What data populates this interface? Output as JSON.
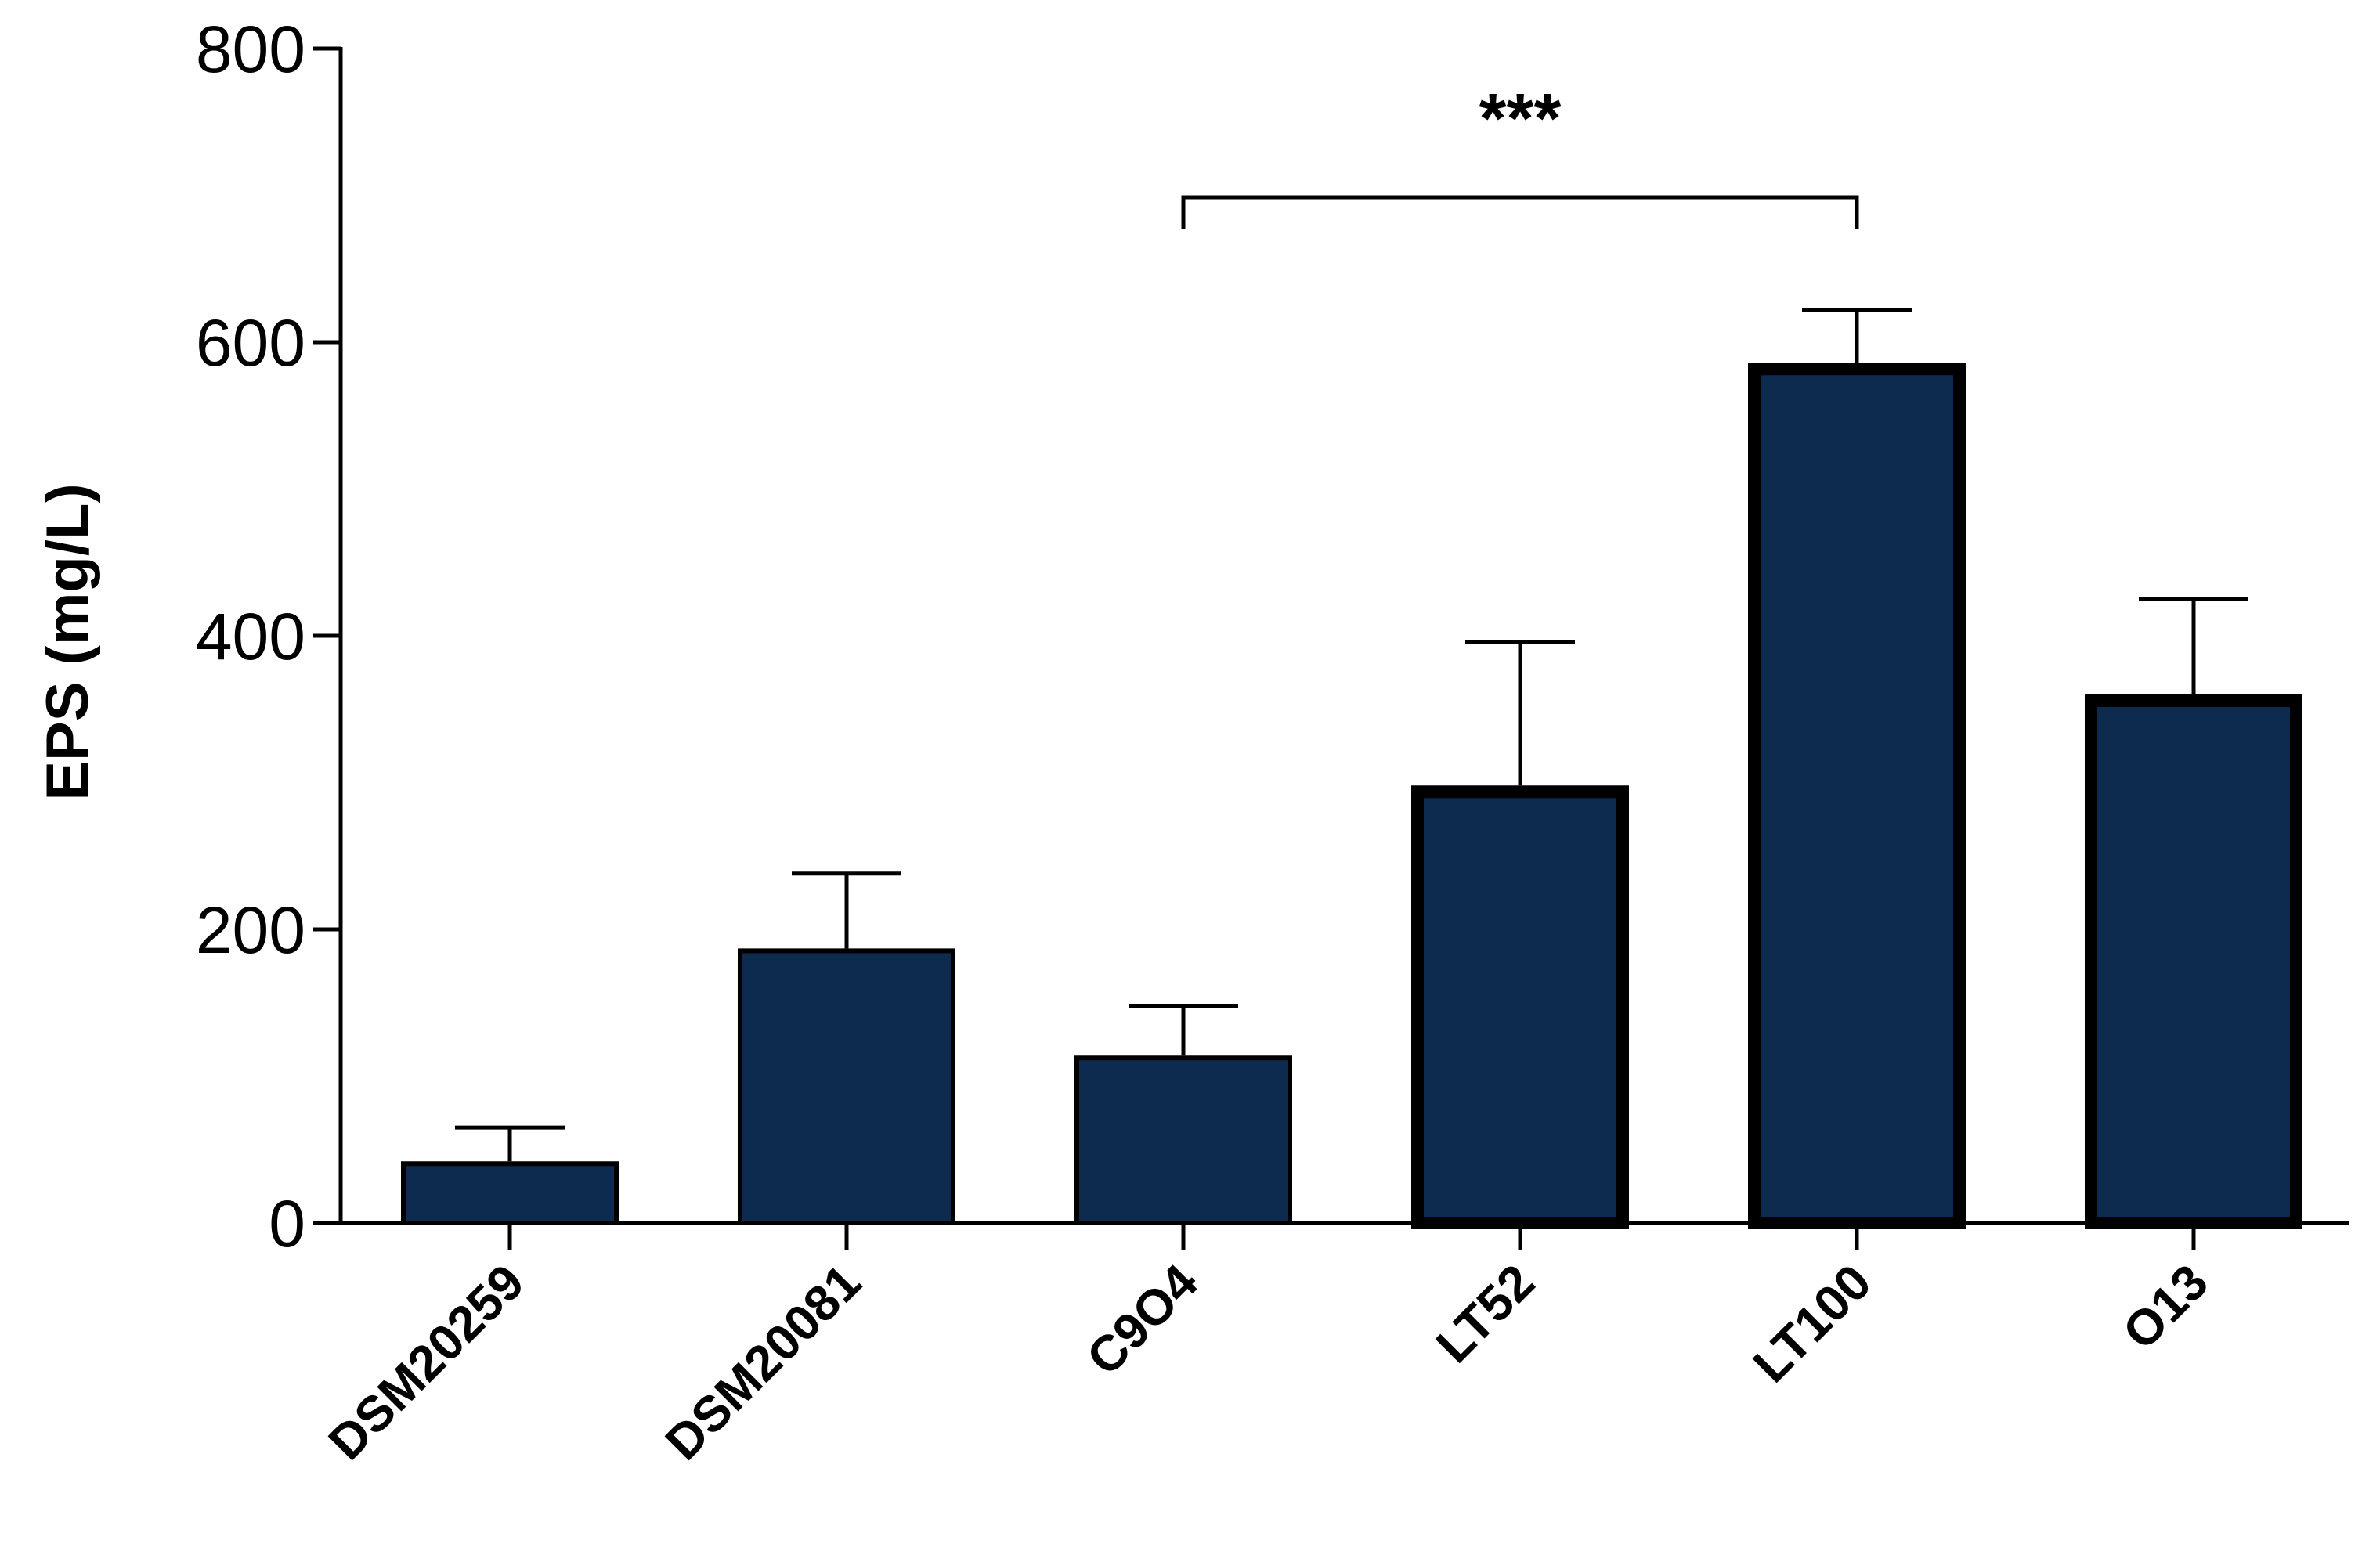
{
  "chart_data": {
    "type": "bar",
    "title": "",
    "xlabel": "",
    "ylabel": "EPS (mg/L)",
    "ylim": [
      0,
      800
    ],
    "yticks": [
      "0",
      "200",
      "400",
      "600",
      "800"
    ],
    "grid": false,
    "legend": "none",
    "categories": [
      "DSM20259",
      "DSM20081",
      "C9O4",
      "LT52",
      "LT100",
      "O13"
    ],
    "values": [
      42,
      187,
      114,
      298,
      586,
      360
    ],
    "error_plus": [
      23,
      51,
      34,
      98,
      36,
      65
    ],
    "emphasized": [
      false,
      false,
      false,
      true,
      true,
      true
    ],
    "significance": {
      "from": "C9O4",
      "to": "LT100",
      "label": "***"
    },
    "colors": {
      "bar_fill": "#0d2b4e",
      "bar_edge": "#000000",
      "axis": "#000000"
    }
  }
}
